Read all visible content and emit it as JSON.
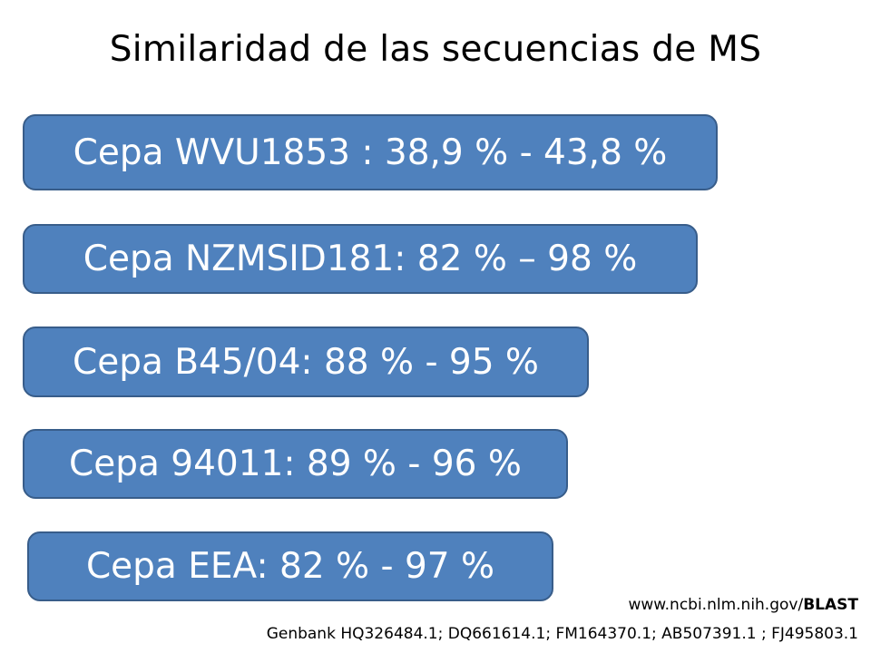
{
  "slide": {
    "title": "Similaridad de las secuencias de MS",
    "strains": [
      {
        "label": "Cepa WVU1853 : 38,9 % - 43,8 %"
      },
      {
        "label": "Cepa NZMSID181: 82 % – 98 %"
      },
      {
        "label": "Cepa B45/04: 88 % - 95 %"
      },
      {
        "label": "Cepa 94011: 89 % - 96 %"
      },
      {
        "label": "Cepa EEA: 82 % - 97 %"
      }
    ],
    "source": {
      "url_prefix": "www.ncbi.nlm.nih.gov/",
      "url_bold": "BLAST",
      "references": "Genbank HQ326484.1; DQ661614.1; FM164370.1; AB507391.1 ; FJ495803.1"
    },
    "colors": {
      "bar_fill": "#4f81bd",
      "bar_border": "#385d8a",
      "bar_text": "#ffffff"
    }
  }
}
